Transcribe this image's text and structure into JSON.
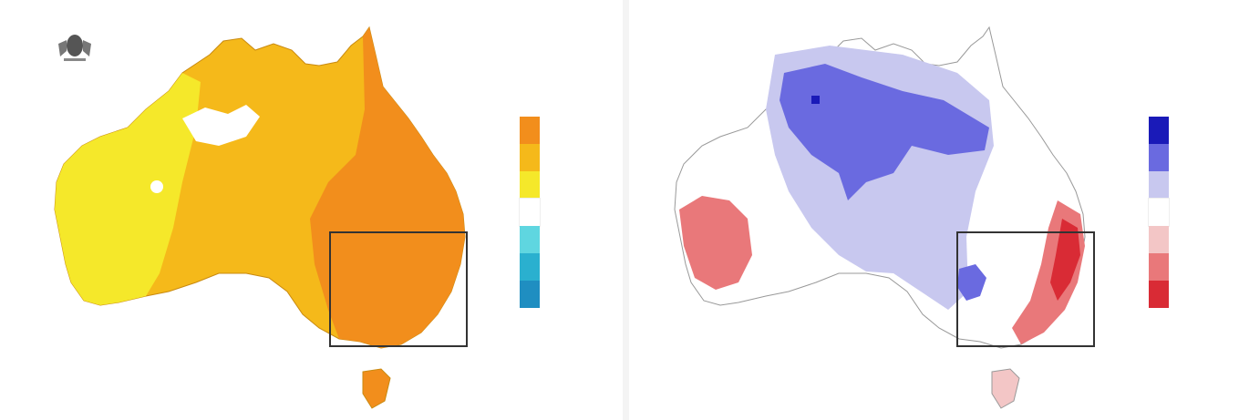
{
  "left_panel": {
    "agency_line1": "",
    "agency_line2": "",
    "legend_title": "",
    "legend": [
      {
        "tick": "",
        "label": "",
        "color": "#f28e1c"
      },
      {
        "tick": "",
        "label": "",
        "color": "#f5b91a"
      },
      {
        "tick": "",
        "label": "",
        "color": "#f5e82a"
      },
      {
        "tick": "",
        "label": "",
        "color": "#ffffff"
      },
      {
        "tick": "",
        "label": "",
        "color": "#5fd6e0"
      },
      {
        "tick": "",
        "label": "",
        "color": "#2ab0cf"
      },
      {
        "tick": "",
        "label": "",
        "color": "#1f8ec1"
      }
    ],
    "caption": [
      "",
      "",
      "",
      ""
    ],
    "footer_left": "",
    "footer_right": ""
  },
  "right_panel": {
    "legend_title": "",
    "legend": [
      {
        "tick": "",
        "label": "",
        "color": "#1a1ab8"
      },
      {
        "tick": "",
        "label": "",
        "color": "#6a6ae0"
      },
      {
        "tick": "",
        "label": "",
        "color": "#c8c8ef"
      },
      {
        "tick": "",
        "label": "",
        "color": "#ffffff"
      },
      {
        "tick": "",
        "label": "",
        "color": "#f3c6c6"
      },
      {
        "tick": "",
        "label": "",
        "color": "#e9787a"
      },
      {
        "tick": "",
        "label": "",
        "color": "#d92b35"
      }
    ],
    "caption": [
      "",
      "",
      ""
    ],
    "footer_left": "",
    "footer_right": ""
  },
  "colors": {
    "temp_hot": "#f28e1c",
    "temp_warm": "#f5b91a",
    "temp_mild": "#f5e82a",
    "rain_very_low": "#1a1ab8",
    "rain_low": "#6a6ae0",
    "rain_below": "#c8c8ef",
    "rain_above": "#e9787a",
    "rain_high": "#d92b35",
    "highlight_box": "#333333"
  }
}
